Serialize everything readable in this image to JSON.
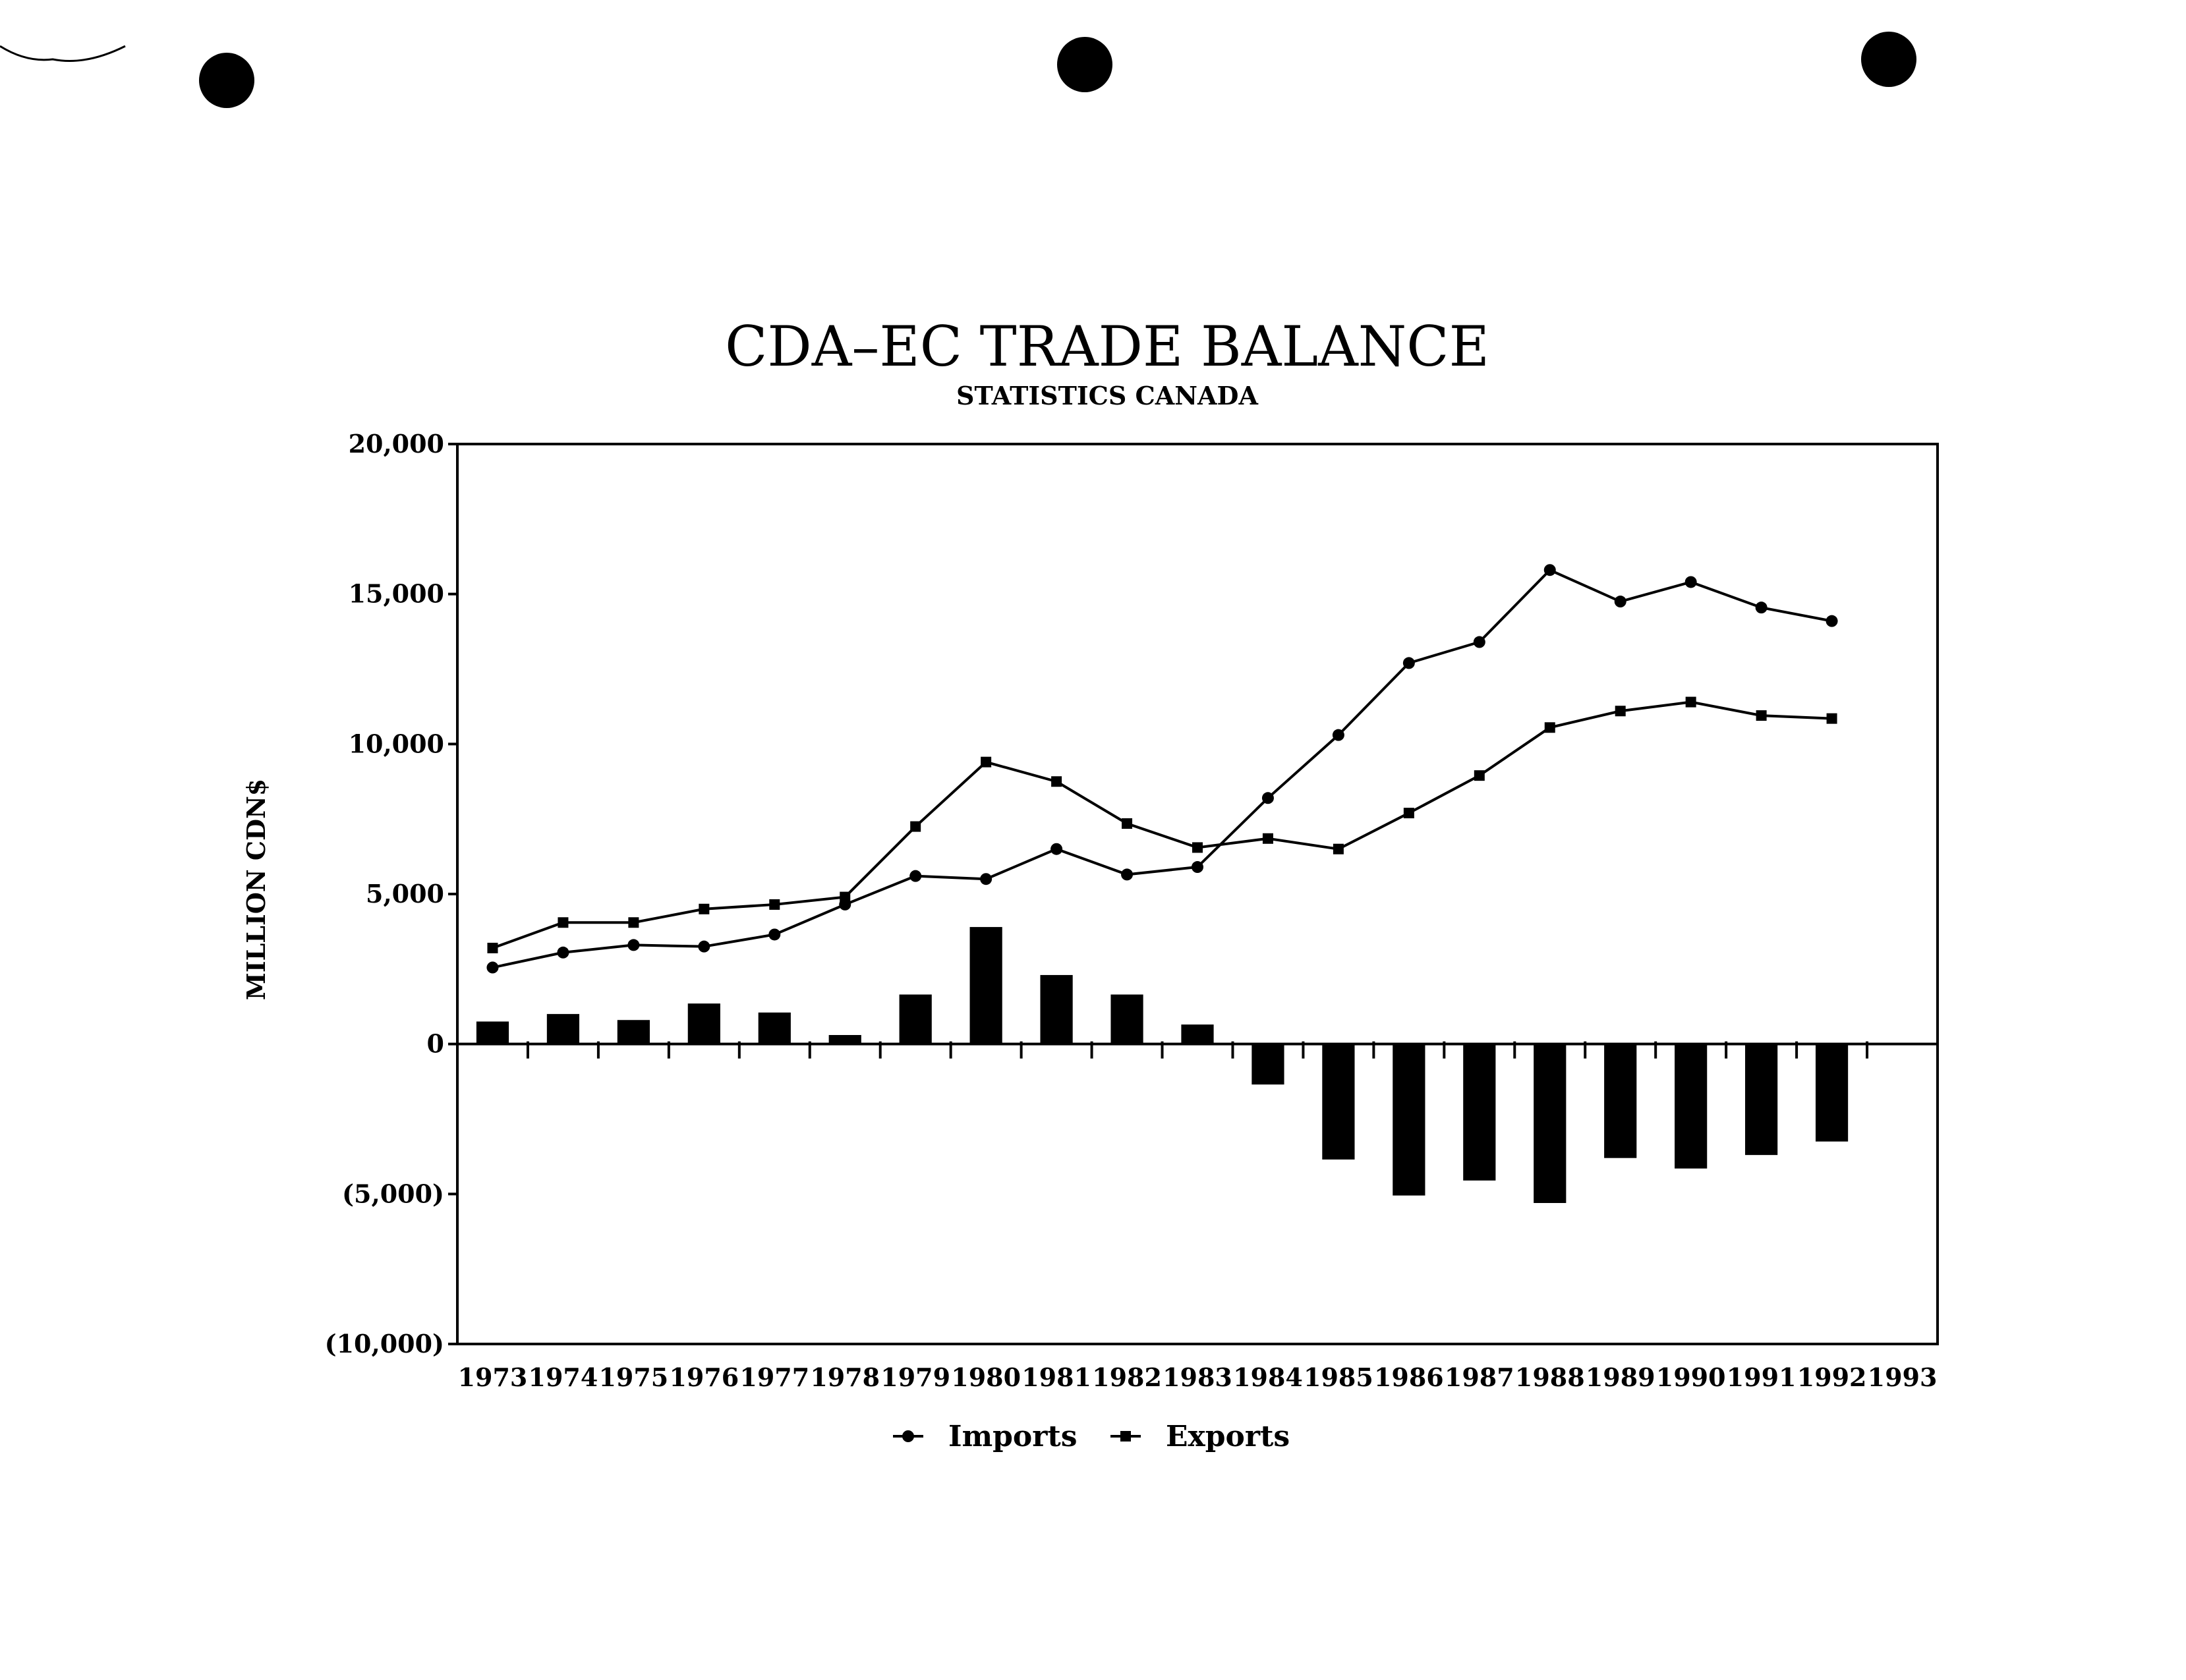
{
  "chart_data": {
    "type": "line+bar",
    "title": "CDA–EC  TRADE  BALANCE",
    "subtitle": "STATISTICS  CANADA",
    "ylabel": "MILLION  CDN$",
    "xlabel": "",
    "ylim": [
      -10000,
      20000
    ],
    "yticks": [
      20000,
      15000,
      10000,
      5000,
      0,
      -5000,
      -10000
    ],
    "ytick_labels": [
      "20,000",
      "15,000",
      "10,000",
      "5,000",
      "0",
      "(5,000)",
      "(10,000)"
    ],
    "categories": [
      "1973",
      "1974",
      "1975",
      "1976",
      "1977",
      "1978",
      "1979",
      "1980",
      "1981",
      "1982",
      "1983",
      "1984",
      "1985",
      "1986",
      "1987",
      "1988",
      "1989",
      "1990",
      "1991",
      "1992",
      "1993"
    ],
    "series": [
      {
        "name": "Imports",
        "kind": "line",
        "marker": "circle",
        "values": [
          2550,
          3050,
          3300,
          3250,
          3650,
          4650,
          5600,
          5500,
          6500,
          5650,
          5900,
          8200,
          10300,
          12700,
          13400,
          15800,
          14750,
          15400,
          14550,
          14100,
          null
        ]
      },
      {
        "name": "Exports",
        "kind": "line",
        "marker": "square",
        "values": [
          3200,
          4050,
          4050,
          4500,
          4650,
          4900,
          7250,
          9400,
          8750,
          7350,
          6550,
          6850,
          6500,
          7700,
          8950,
          10550,
          11100,
          11400,
          10950,
          10850,
          null
        ]
      },
      {
        "name": "",
        "kind": "bar",
        "values": [
          750,
          1000,
          800,
          1350,
          1050,
          300,
          1650,
          3900,
          2300,
          1650,
          650,
          -1350,
          -3850,
          -5050,
          -4550,
          -5300,
          -3800,
          -4150,
          -3700,
          -3250,
          null
        ]
      }
    ],
    "legend": {
      "placement": "bottom-center",
      "entries": [
        "Imports",
        "Exports"
      ]
    },
    "grid": false,
    "colors": {
      "ink": "#000000",
      "background": "#ffffff"
    }
  }
}
